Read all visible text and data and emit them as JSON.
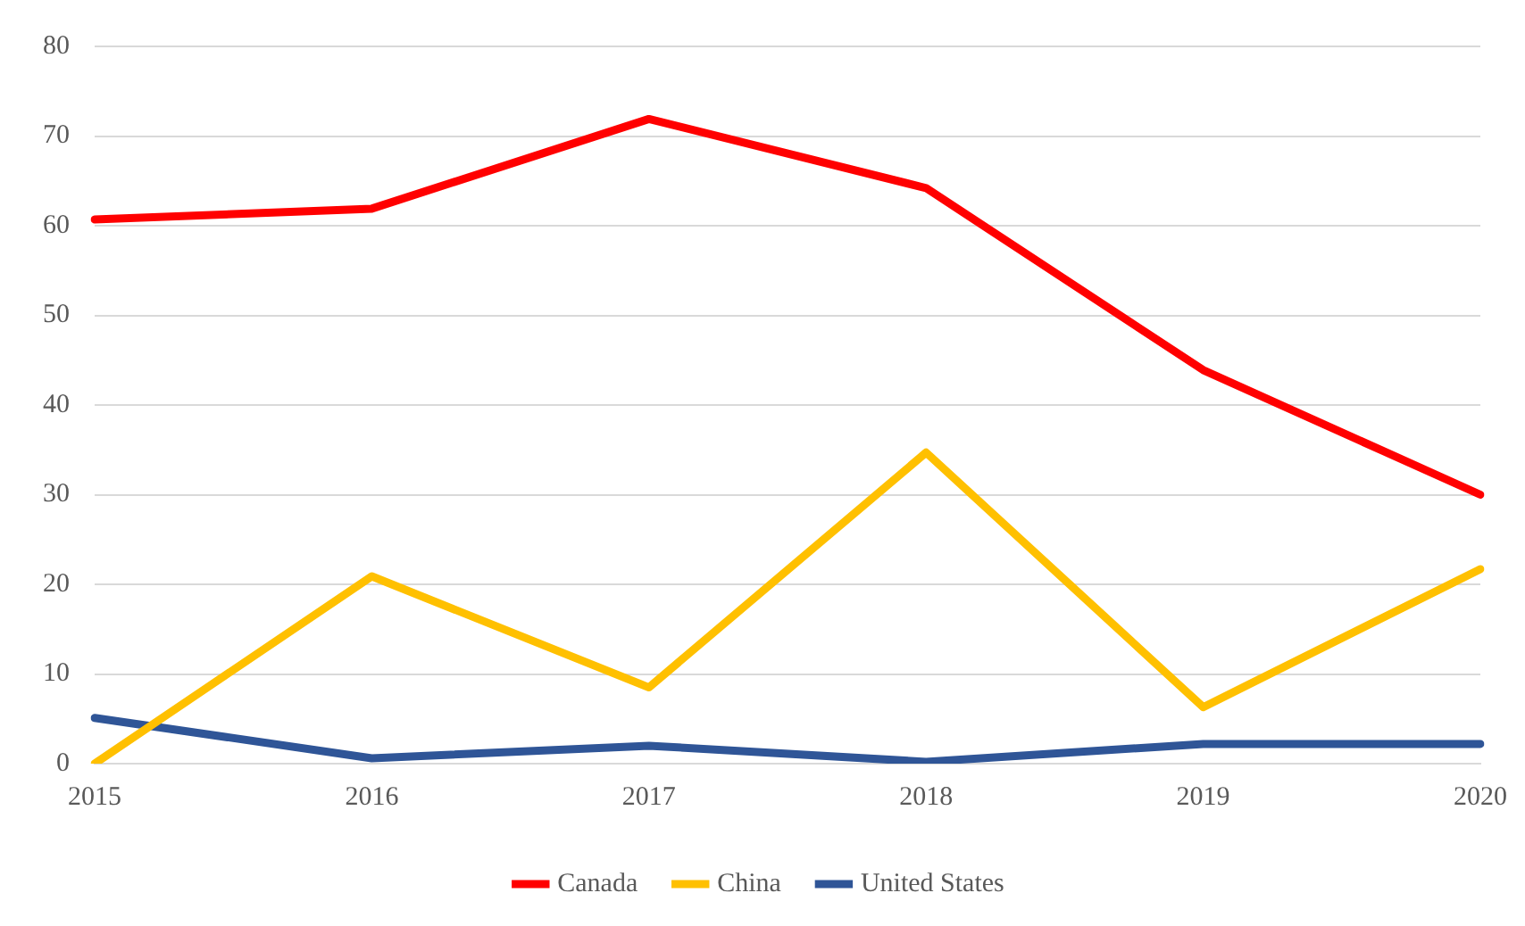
{
  "chart_data": {
    "type": "line",
    "categories": [
      "2015",
      "2016",
      "2017",
      "2018",
      "2019",
      "2020"
    ],
    "series": [
      {
        "name": "Canada",
        "color": "#ff0000",
        "values": [
          60.7,
          61.9,
          71.9,
          64.2,
          43.9,
          30.0
        ]
      },
      {
        "name": "China",
        "color": "#ffc000",
        "values": [
          0,
          20.9,
          8.5,
          34.7,
          6.3,
          21.7
        ]
      },
      {
        "name": "United States",
        "color": "#2f5597",
        "values": [
          5.1,
          0.6,
          2.0,
          0.2,
          2.2,
          2.2
        ]
      }
    ],
    "ylim": [
      0,
      80
    ],
    "yticks": [
      0,
      10,
      20,
      30,
      40,
      50,
      60,
      70,
      80
    ],
    "grid": "y",
    "legend": "bottom",
    "marker": "none"
  }
}
